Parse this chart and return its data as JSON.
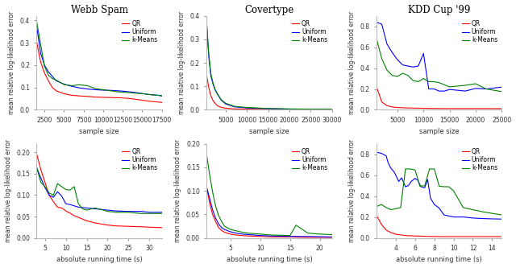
{
  "titles": [
    "Webb Spam",
    "Covertype",
    "KDD Cup '99"
  ],
  "legend_labels": [
    "QR",
    "Uniform",
    "k-Means"
  ],
  "colors": [
    "red",
    "blue",
    "green"
  ],
  "xlabel_top": "sample size",
  "xlabel_bottom": "absolute running time (s)",
  "ylabel": "mean relative log-likelihood error",
  "webb_spam_top": {
    "x_qr": [
      1500,
      2000,
      2500,
      3000,
      3500,
      4000,
      5000,
      6000,
      7000,
      8000,
      9000,
      10000,
      11000,
      12000,
      13000,
      14000,
      15000,
      16000,
      17000,
      17500
    ],
    "y_qr": [
      0.305,
      0.215,
      0.165,
      0.13,
      0.1,
      0.085,
      0.072,
      0.065,
      0.062,
      0.06,
      0.057,
      0.056,
      0.055,
      0.054,
      0.052,
      0.048,
      0.043,
      0.038,
      0.035,
      0.033
    ],
    "x_uniform": [
      1500,
      2000,
      2500,
      3000,
      3500,
      4000,
      5000,
      6000,
      7000,
      8000,
      9000,
      10000,
      11000,
      12000,
      13000,
      14000,
      15000,
      16000,
      17000,
      17500
    ],
    "y_uniform": [
      0.375,
      0.255,
      0.2,
      0.17,
      0.15,
      0.13,
      0.115,
      0.105,
      0.098,
      0.093,
      0.09,
      0.088,
      0.087,
      0.085,
      0.082,
      0.078,
      0.073,
      0.068,
      0.065,
      0.063
    ],
    "x_kmeans": [
      1500,
      2000,
      2500,
      3000,
      3500,
      4000,
      5000,
      6000,
      7000,
      8000,
      9000,
      10000,
      11000,
      12000,
      13000,
      14000,
      15000,
      16000,
      17000,
      17500
    ],
    "y_kmeans": [
      0.395,
      0.295,
      0.195,
      0.155,
      0.14,
      0.133,
      0.113,
      0.108,
      0.112,
      0.108,
      0.095,
      0.09,
      0.085,
      0.08,
      0.078,
      0.075,
      0.072,
      0.068,
      0.065,
      0.062
    ],
    "xlim": [
      1500,
      17500
    ],
    "ylim": [
      0,
      0.42
    ],
    "xticks": [
      2500,
      5000,
      7500,
      10000,
      12500,
      15000,
      17500
    ]
  },
  "covertype_top": {
    "x_qr": [
      500,
      1000,
      1500,
      2000,
      2500,
      3000,
      4000,
      5000,
      7000,
      10000,
      15000,
      20000,
      25000,
      30000
    ],
    "y_qr": [
      0.148,
      0.095,
      0.06,
      0.04,
      0.028,
      0.018,
      0.01,
      0.007,
      0.004,
      0.003,
      0.002,
      0.002,
      0.002,
      0.001
    ],
    "x_uniform": [
      500,
      1000,
      1500,
      2000,
      2500,
      3000,
      4000,
      5000,
      7000,
      10000,
      15000,
      20000,
      25000,
      30000
    ],
    "y_uniform": [
      0.37,
      0.228,
      0.145,
      0.11,
      0.085,
      0.068,
      0.04,
      0.025,
      0.013,
      0.008,
      0.005,
      0.003,
      0.003,
      0.002
    ],
    "x_kmeans": [
      500,
      1000,
      1500,
      2000,
      2500,
      3000,
      4000,
      5000,
      7000,
      10000,
      15000,
      20000,
      25000,
      30000
    ],
    "y_kmeans": [
      0.375,
      0.24,
      0.155,
      0.115,
      0.088,
      0.07,
      0.042,
      0.028,
      0.015,
      0.01,
      0.006,
      0.004,
      0.003,
      0.003
    ],
    "xlim": [
      500,
      30000
    ],
    "ylim": [
      0,
      0.4
    ],
    "xticks": [
      5000,
      10000,
      15000,
      20000,
      25000,
      30000
    ]
  },
  "kdd_top": {
    "x_qr": [
      1000,
      2000,
      3000,
      4000,
      5000,
      7000,
      10000,
      12000,
      15000,
      18000,
      20000,
      22000,
      25000
    ],
    "y_qr": [
      0.22,
      0.075,
      0.04,
      0.028,
      0.022,
      0.018,
      0.015,
      0.013,
      0.012,
      0.012,
      0.012,
      0.012,
      0.012
    ],
    "x_uniform": [
      1000,
      2000,
      3000,
      4000,
      5000,
      6000,
      7000,
      8000,
      9000,
      10000,
      11000,
      12000,
      13000,
      14000,
      15000,
      17000,
      18000,
      20000,
      22000,
      25000
    ],
    "y_uniform": [
      0.84,
      0.82,
      0.63,
      0.55,
      0.48,
      0.43,
      0.42,
      0.41,
      0.42,
      0.54,
      0.2,
      0.2,
      0.18,
      0.18,
      0.195,
      0.185,
      0.18,
      0.205,
      0.2,
      0.218
    ],
    "x_kmeans": [
      1000,
      2000,
      3000,
      4000,
      5000,
      6000,
      7000,
      8000,
      9000,
      10000,
      11000,
      12000,
      13000,
      15000,
      18000,
      20000,
      22000,
      25000
    ],
    "y_kmeans": [
      0.68,
      0.49,
      0.38,
      0.33,
      0.32,
      0.35,
      0.33,
      0.28,
      0.27,
      0.3,
      0.27,
      0.27,
      0.26,
      0.22,
      0.235,
      0.25,
      0.2,
      0.175
    ],
    "xlim": [
      1000,
      25000
    ],
    "ylim": [
      0,
      0.9
    ],
    "xticks": [
      5000,
      10000,
      15000,
      20000,
      25000
    ]
  },
  "webb_spam_bottom": {
    "x_qr": [
      3,
      4,
      5,
      6,
      7,
      8,
      9,
      10,
      11,
      12,
      13,
      15,
      17,
      20,
      22,
      25,
      28,
      30,
      33
    ],
    "y_qr": [
      0.197,
      0.16,
      0.13,
      0.1,
      0.085,
      0.072,
      0.07,
      0.063,
      0.058,
      0.052,
      0.048,
      0.04,
      0.035,
      0.03,
      0.028,
      0.027,
      0.026,
      0.025,
      0.024
    ],
    "x_uniform": [
      3,
      4,
      5,
      6,
      7,
      8,
      9,
      10,
      11,
      12,
      13,
      15,
      17,
      20,
      22,
      25,
      28,
      30,
      33
    ],
    "y_uniform": [
      0.165,
      0.14,
      0.118,
      0.1,
      0.095,
      0.108,
      0.098,
      0.08,
      0.078,
      0.075,
      0.072,
      0.07,
      0.068,
      0.065,
      0.063,
      0.062,
      0.062,
      0.06,
      0.06
    ],
    "x_kmeans": [
      3,
      4,
      5,
      6,
      7,
      8,
      9,
      10,
      11,
      12,
      13,
      14,
      15,
      17,
      19,
      20,
      22,
      25,
      28,
      30,
      33
    ],
    "y_kmeans": [
      0.165,
      0.13,
      0.12,
      0.105,
      0.1,
      0.127,
      0.12,
      0.113,
      0.112,
      0.12,
      0.08,
      0.068,
      0.065,
      0.07,
      0.065,
      0.062,
      0.06,
      0.06,
      0.057,
      0.057,
      0.057
    ],
    "xlim": [
      3,
      33
    ],
    "ylim": [
      0,
      0.22
    ],
    "xticks": [
      5,
      10,
      15,
      20,
      25,
      30
    ]
  },
  "covertype_bottom": {
    "x_qr": [
      1.0,
      1.5,
      2.0,
      2.5,
      3.0,
      3.5,
      4.0,
      5.0,
      6.0,
      7.0,
      8.0,
      10.0,
      12.0,
      15.0,
      18.0,
      22.0
    ],
    "y_qr": [
      0.108,
      0.075,
      0.05,
      0.035,
      0.022,
      0.016,
      0.012,
      0.008,
      0.006,
      0.005,
      0.004,
      0.003,
      0.002,
      0.002,
      0.001,
      0.001
    ],
    "x_uniform": [
      1.0,
      1.5,
      2.0,
      2.5,
      3.0,
      3.5,
      4.0,
      5.0,
      6.0,
      7.0,
      8.0,
      10.0,
      12.0,
      15.0,
      18.0,
      22.0
    ],
    "y_uniform": [
      0.108,
      0.085,
      0.06,
      0.042,
      0.03,
      0.022,
      0.018,
      0.013,
      0.01,
      0.008,
      0.007,
      0.005,
      0.004,
      0.003,
      0.003,
      0.002
    ],
    "x_kmeans": [
      1.0,
      1.5,
      2.0,
      2.5,
      3.0,
      3.5,
      4.0,
      5.0,
      6.0,
      7.0,
      8.0,
      10.0,
      12.0,
      15.0,
      16.0,
      18.0,
      20.0,
      22.0
    ],
    "y_kmeans": [
      0.178,
      0.135,
      0.098,
      0.068,
      0.048,
      0.035,
      0.025,
      0.018,
      0.015,
      0.012,
      0.01,
      0.008,
      0.006,
      0.005,
      0.027,
      0.01,
      0.008,
      0.007
    ],
    "xlim": [
      1.0,
      22.0
    ],
    "ylim": [
      0,
      0.2
    ],
    "xticks": [
      5,
      10,
      15,
      20
    ]
  },
  "kdd_bottom": {
    "x_qr": [
      2.0,
      2.5,
      3.0,
      3.5,
      4.0,
      5.0,
      6.0,
      7.0,
      8.0,
      9.0,
      10.0,
      11.0,
      12.0,
      13.0,
      14.0,
      15.0
    ],
    "y_qr": [
      0.215,
      0.13,
      0.075,
      0.05,
      0.035,
      0.022,
      0.018,
      0.015,
      0.013,
      0.012,
      0.012,
      0.012,
      0.012,
      0.012,
      0.012,
      0.012
    ],
    "x_uniform": [
      2.0,
      2.5,
      3.0,
      3.2,
      3.5,
      3.8,
      4.0,
      4.3,
      4.6,
      5.0,
      5.3,
      5.6,
      6.0,
      6.3,
      6.6,
      7.0,
      7.3,
      7.6,
      8.0,
      8.5,
      9.0,
      9.5,
      10.0,
      11.0,
      12.0,
      13.0,
      14.0,
      15.0
    ],
    "y_uniform": [
      0.82,
      0.81,
      0.785,
      0.72,
      0.665,
      0.635,
      0.6,
      0.54,
      0.575,
      0.49,
      0.5,
      0.54,
      0.57,
      0.55,
      0.49,
      0.48,
      0.56,
      0.38,
      0.32,
      0.285,
      0.22,
      0.21,
      0.2,
      0.2,
      0.19,
      0.185,
      0.182,
      0.18
    ],
    "x_kmeans": [
      2.0,
      2.5,
      3.0,
      3.5,
      4.0,
      4.5,
      5.0,
      5.5,
      6.0,
      6.5,
      7.0,
      7.5,
      8.0,
      8.5,
      9.0,
      9.5,
      10.0,
      11.0,
      12.0,
      13.0,
      14.0,
      15.0
    ],
    "y_kmeans": [
      0.3,
      0.32,
      0.29,
      0.27,
      0.28,
      0.29,
      0.66,
      0.66,
      0.65,
      0.495,
      0.5,
      0.66,
      0.66,
      0.495,
      0.49,
      0.49,
      0.45,
      0.29,
      0.27,
      0.25,
      0.235,
      0.22
    ],
    "xlim": [
      2.0,
      15.0
    ],
    "ylim": [
      0,
      0.9
    ],
    "xticks": [
      4,
      6,
      8,
      10,
      12,
      14
    ]
  }
}
